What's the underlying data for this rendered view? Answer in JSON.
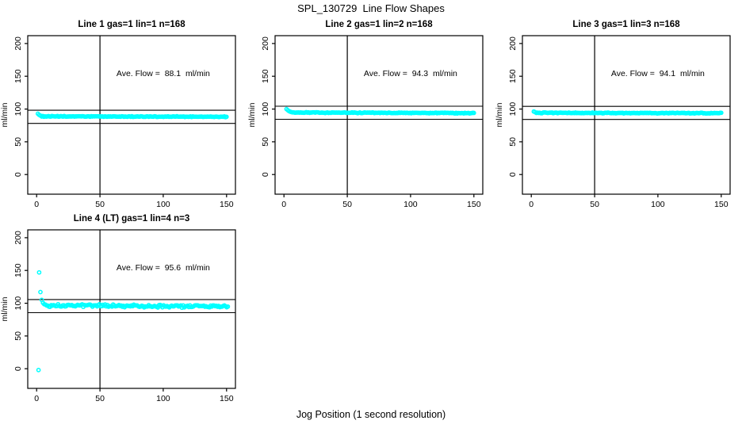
{
  "figure": {
    "title": "SPL_130729  Line Flow Shapes",
    "xlabel": "Jog Position (1 second resolution)",
    "background_color": "#ffffff",
    "point_color": "#00ffff",
    "line_color": "#000000"
  },
  "chart_data": [
    {
      "type": "scatter",
      "title": "Line 1 gas=1 lin=1 n=168",
      "annotation": "Ave. Flow =  88.1  ml/min",
      "avg_flow_ml_min": 88.1,
      "n": 168,
      "ylabel": "ml/min",
      "x_ticks": [
        0,
        50,
        100,
        150
      ],
      "y_ticks": [
        0,
        50,
        100,
        150,
        200
      ],
      "xlim": [
        -7,
        157
      ],
      "ylim": [
        -30,
        212
      ],
      "vline_x": 50,
      "hlines": [
        98.1,
        78.1
      ],
      "annotation_pos": [
        100,
        150
      ],
      "grid": false,
      "series": {
        "name": "flow",
        "transient_points": [
          [
            1,
            92.8
          ],
          [
            2,
            91.0
          ],
          [
            3,
            89.9
          ]
        ],
        "steady_value": 88.8,
        "drift": -0.6,
        "noise": 0.45,
        "steady_x_start": 4,
        "x_end": 150,
        "n_points": 165
      }
    },
    {
      "type": "scatter",
      "title": "Line 2 gas=1 lin=2 n=168",
      "annotation": "Ave. Flow =  94.3  ml/min",
      "avg_flow_ml_min": 94.3,
      "n": 168,
      "ylabel": "ml/min",
      "x_ticks": [
        0,
        50,
        100,
        150
      ],
      "y_ticks": [
        0,
        50,
        100,
        150,
        200
      ],
      "xlim": [
        -7,
        157
      ],
      "ylim": [
        -30,
        212
      ],
      "vline_x": 50,
      "hlines": [
        104.3,
        84.3
      ],
      "annotation_pos": [
        100,
        150
      ],
      "grid": false,
      "series": {
        "name": "flow",
        "transient_points": [
          [
            2,
            100.0
          ],
          [
            3,
            98.2
          ],
          [
            4,
            96.8
          ],
          [
            5,
            95.8
          ],
          [
            6,
            95.2
          ]
        ],
        "steady_value": 94.6,
        "drift": -0.8,
        "noise": 0.45,
        "steady_x_start": 7,
        "x_end": 150,
        "n_points": 163
      }
    },
    {
      "type": "scatter",
      "title": "Line 3 gas=1 lin=3 n=168",
      "annotation": "Ave. Flow =  94.1  ml/min",
      "avg_flow_ml_min": 94.1,
      "n": 168,
      "ylabel": "ml/min",
      "x_ticks": [
        0,
        50,
        100,
        150
      ],
      "y_ticks": [
        0,
        50,
        100,
        150,
        200
      ],
      "xlim": [
        -7,
        157
      ],
      "ylim": [
        -30,
        212
      ],
      "vline_x": 50,
      "hlines": [
        104.1,
        84.1
      ],
      "annotation_pos": [
        100,
        150
      ],
      "grid": false,
      "series": {
        "name": "flow",
        "transient_points": [
          [
            2,
            96.2
          ],
          [
            3,
            95.2
          ]
        ],
        "steady_value": 94.2,
        "drift": -0.5,
        "noise": 0.45,
        "steady_x_start": 4,
        "x_end": 150,
        "n_points": 166
      }
    },
    {
      "type": "scatter",
      "title": "Line 4 (LT) gas=1 lin=4 n=3",
      "annotation": "Ave. Flow =  95.6  ml/min",
      "avg_flow_ml_min": 95.6,
      "n": 3,
      "ylabel": "ml/min",
      "x_ticks": [
        0,
        50,
        100,
        150
      ],
      "y_ticks": [
        0,
        50,
        100,
        150,
        200
      ],
      "xlim": [
        -7,
        157
      ],
      "ylim": [
        -30,
        212
      ],
      "vline_x": 50,
      "hlines": [
        105.6,
        85.6
      ],
      "annotation_pos": [
        100,
        150
      ],
      "grid": false,
      "series": {
        "name": "flow",
        "transient_points": [
          [
            1.5,
            -2
          ],
          [
            2,
            147
          ],
          [
            3,
            117
          ],
          [
            4,
            105
          ],
          [
            5,
            100.5
          ],
          [
            6,
            98.5
          ]
        ],
        "steady_value": 96.8,
        "drift": -2.0,
        "noise": 1.6,
        "steady_x_start": 7,
        "x_end": 151,
        "n_points": 160
      }
    }
  ]
}
